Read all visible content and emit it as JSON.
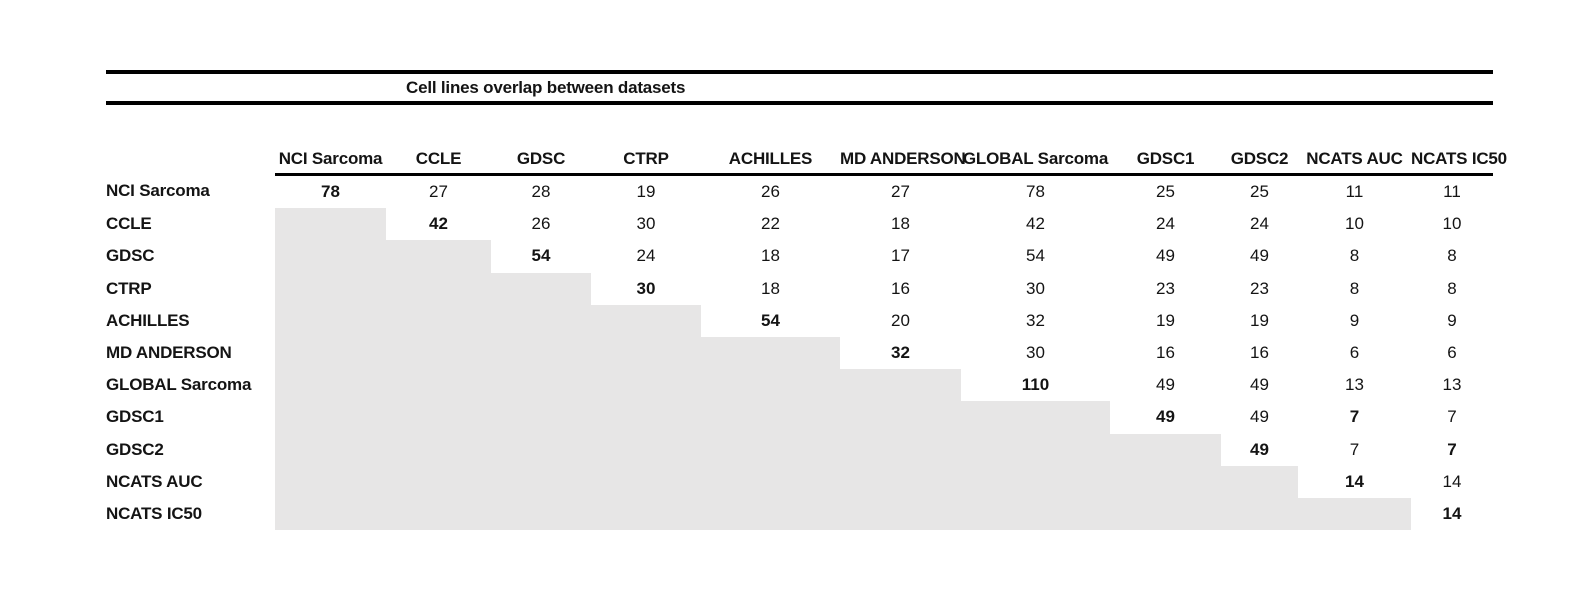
{
  "figure": {
    "title": "Cell lines overlap between datasets"
  },
  "table": {
    "columns": [
      "NCI Sarcoma",
      "CCLE",
      "GDSC",
      "CTRP",
      "ACHILLES",
      "MD ANDERSON",
      "GLOBAL Sarcoma",
      "GDSC1",
      "GDSC2",
      "NCATS AUC",
      "NCATS IC50"
    ],
    "rows": [
      {
        "label": "NCI Sarcoma",
        "cells": [
          "78",
          "27",
          "28",
          "19",
          "26",
          "27",
          "78",
          "25",
          "25",
          "11",
          "11"
        ],
        "bold": [
          0
        ]
      },
      {
        "label": "CCLE",
        "cells": [
          null,
          "42",
          "26",
          "30",
          "22",
          "18",
          "42",
          "24",
          "24",
          "10",
          "10"
        ],
        "bold": [
          1
        ]
      },
      {
        "label": "GDSC",
        "cells": [
          null,
          null,
          "54",
          "24",
          "18",
          "17",
          "54",
          "49",
          "49",
          "8",
          "8"
        ],
        "bold": [
          2
        ]
      },
      {
        "label": "CTRP",
        "cells": [
          null,
          null,
          null,
          "30",
          "18",
          "16",
          "30",
          "23",
          "23",
          "8",
          "8"
        ],
        "bold": [
          3
        ]
      },
      {
        "label": "ACHILLES",
        "cells": [
          null,
          null,
          null,
          null,
          "54",
          "20",
          "32",
          "19",
          "19",
          "9",
          "9"
        ],
        "bold": [
          4
        ]
      },
      {
        "label": "MD ANDERSON",
        "cells": [
          null,
          null,
          null,
          null,
          null,
          "32",
          "30",
          "16",
          "16",
          "6",
          "6"
        ],
        "bold": [
          5
        ]
      },
      {
        "label": "GLOBAL Sarcoma",
        "cells": [
          null,
          null,
          null,
          null,
          null,
          null,
          "110",
          "49",
          "49",
          "13",
          "13"
        ],
        "bold": [
          6
        ]
      },
      {
        "label": "GDSC1",
        "cells": [
          null,
          null,
          null,
          null,
          null,
          null,
          null,
          "49",
          "49",
          "7",
          "7"
        ],
        "bold": [
          7,
          9
        ]
      },
      {
        "label": "GDSC2",
        "cells": [
          null,
          null,
          null,
          null,
          null,
          null,
          null,
          null,
          "49",
          "7",
          "7"
        ],
        "bold": [
          8,
          10
        ]
      },
      {
        "label": "NCATS AUC",
        "cells": [
          null,
          null,
          null,
          null,
          null,
          null,
          null,
          null,
          null,
          "14",
          "14"
        ],
        "bold": [
          9
        ]
      },
      {
        "label": "NCATS IC50",
        "cells": [
          null,
          null,
          null,
          null,
          null,
          null,
          null,
          null,
          null,
          null,
          "14"
        ],
        "bold": [
          10
        ]
      }
    ],
    "shaded_cell_color": "#e7e6e6",
    "rule_color": "#000000",
    "text_color": "#141414"
  }
}
